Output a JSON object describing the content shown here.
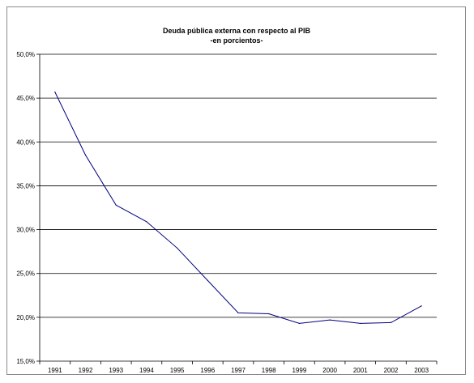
{
  "chart_data": {
    "type": "line",
    "title": "Deuda pública externa con respecto al PIB",
    "subtitle": "-en porcientos-",
    "xlabel": "",
    "ylabel": "",
    "categories": [
      "1991",
      "1992",
      "1993",
      "1994",
      "1995",
      "1996",
      "1997",
      "1998",
      "1999",
      "2000",
      "2001",
      "2002",
      "2003"
    ],
    "series": [
      {
        "values": [
          45.7,
          38.5,
          32.8,
          30.9,
          27.9,
          24.2,
          20.5,
          20.4,
          19.3,
          19.7,
          19.3,
          19.4,
          21.3
        ]
      }
    ],
    "ylim": [
      15,
      50
    ],
    "yticks": [
      "15,0%",
      "20,0%",
      "25,0%",
      "30,0%",
      "35,0%",
      "40,0%",
      "45,0%",
      "50,0%"
    ],
    "grid": true,
    "legend": "none",
    "colors": {
      "line": "#00007f",
      "grid": "#000000",
      "axis": "#000000"
    }
  }
}
